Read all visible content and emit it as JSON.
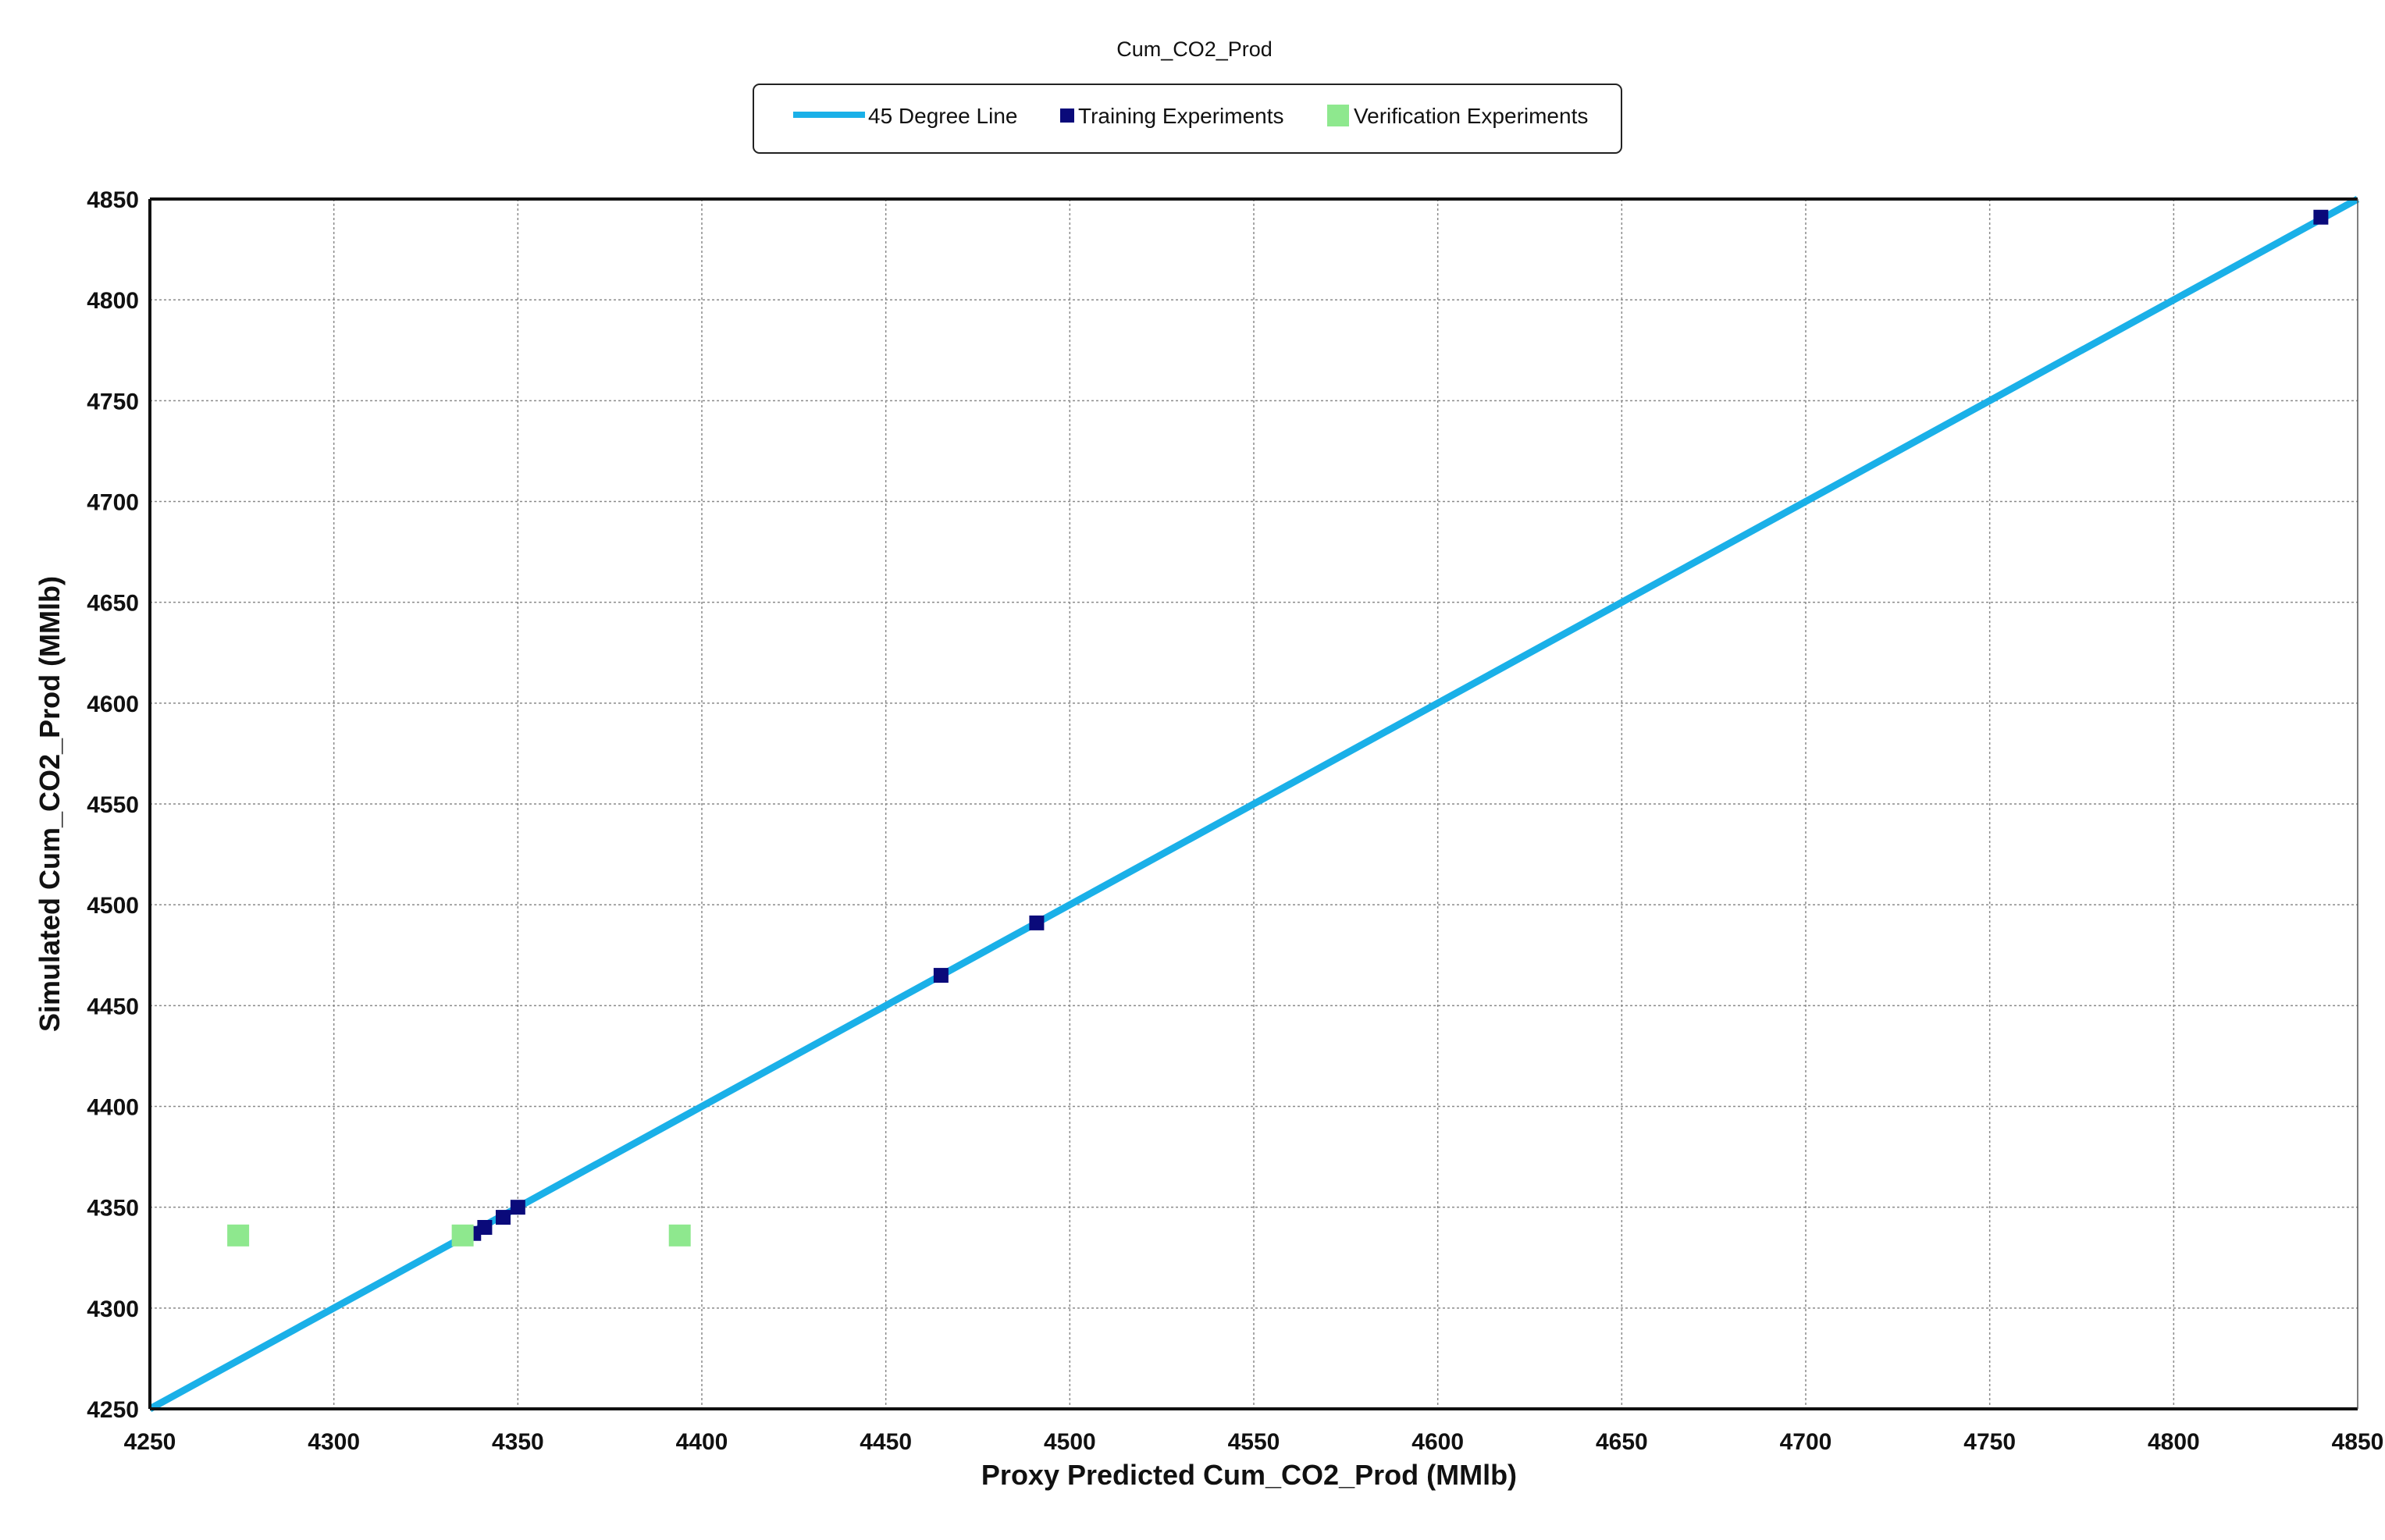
{
  "chart_data": {
    "type": "scatter",
    "title": "Cum_CO2_Prod",
    "xlabel": "Proxy Predicted Cum_CO2_Prod (MMlb)",
    "ylabel": "Simulated Cum_CO2_Prod (MMlb)",
    "xlim": [
      4250,
      4850
    ],
    "ylim": [
      4250,
      4850
    ],
    "x_ticks": [
      "4250",
      "4300",
      "4350",
      "4400",
      "4450",
      "4500",
      "4550",
      "4600",
      "4650",
      "4700",
      "4750",
      "4800",
      "4850"
    ],
    "y_ticks": [
      "4250",
      "4300",
      "4350",
      "4400",
      "4450",
      "4500",
      "4550",
      "4600",
      "4650",
      "4700",
      "4750",
      "4800",
      "4850"
    ],
    "grid": true,
    "legend_position": "top-center",
    "series": [
      {
        "name": "45 Degree Line",
        "kind": "line",
        "color": "#1ab0e8",
        "x": [
          4250,
          4850
        ],
        "y": [
          4250,
          4850
        ]
      },
      {
        "name": "Training Experiments",
        "kind": "scatter",
        "color": "#0a0a7a",
        "x": [
          4338,
          4341,
          4346,
          4350,
          4465,
          4491,
          4840
        ],
        "y": [
          4337,
          4340,
          4345,
          4350,
          4465,
          4491,
          4841
        ]
      },
      {
        "name": "Verification Experiments",
        "kind": "scatter",
        "color": "#8ee88e",
        "x": [
          4274,
          4335,
          4394
        ],
        "y": [
          4336,
          4336,
          4336
        ]
      }
    ]
  }
}
